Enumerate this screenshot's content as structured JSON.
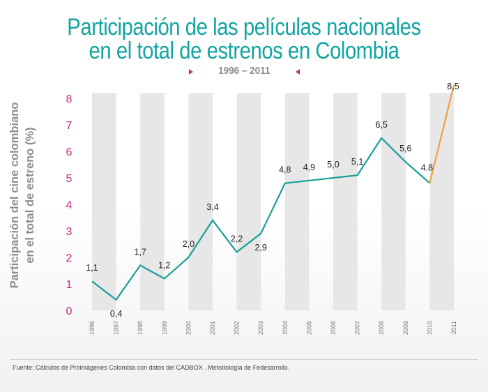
{
  "colors": {
    "title": "#11a4a0",
    "main_line": "#1a9e9a",
    "highlight_line": "#f0a040",
    "tick_labels": "#c2297f",
    "band": "#e7e7e7",
    "marker": "#c2297f"
  },
  "chart_data": {
    "type": "line",
    "title": [
      "Participación de las películas nacionales",
      "en el total de estrenos en Colombia"
    ],
    "subtitle": "1996 – 2011",
    "ylabel": [
      "Participación del cine colombiano",
      "en el total  de estreno (%)"
    ],
    "xlabel": "",
    "ylim": [
      0,
      8
    ],
    "yticks": [
      "0",
      "1",
      "2",
      "3",
      "4",
      "5",
      "6",
      "7",
      "8"
    ],
    "categories": [
      "1996",
      "1997",
      "1998",
      "1999",
      "2000",
      "2001",
      "2002",
      "2003",
      "2004",
      "2005",
      "2006",
      "2007",
      "2008",
      "2009",
      "2010",
      "2011"
    ],
    "values": [
      1.1,
      0.4,
      1.7,
      1.2,
      2.0,
      3.4,
      2.2,
      2.9,
      4.8,
      4.9,
      5.0,
      5.1,
      6.5,
      5.6,
      4.8,
      8.5
    ],
    "data_labels": [
      "1,1",
      "0,4",
      "1,7",
      "1,2",
      "2,0",
      "3,4",
      "2,2",
      "2,9",
      "4,8",
      "4,9",
      "5,0",
      "5,1",
      "6,5",
      "5,6",
      "4.8",
      "8,5"
    ],
    "highlight_segment": [
      "2010",
      "2011"
    ],
    "legend": "none",
    "grid": false
  },
  "source": "Fuente: Cálculos de Proimágenes Colombia con datos del CADBOX . Metodología de Fedesarrollo."
}
